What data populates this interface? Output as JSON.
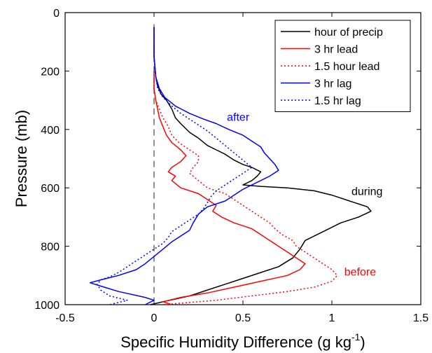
{
  "chart_data": {
    "type": "line",
    "xlabel": "Specific Humidity Difference (g kg",
    "xlabel_exponent": "-1",
    "xlabel_close": ")",
    "ylabel": "Pressure (mb)",
    "xlim": [
      -0.5,
      1.5
    ],
    "ylim": [
      1000,
      0
    ],
    "y_reversed": true,
    "xticks": [
      -0.5,
      0,
      0.5,
      1,
      1.5
    ],
    "xtick_labels": [
      "-0.5",
      "0",
      "0.5",
      "1",
      "1.5"
    ],
    "yticks": [
      0,
      200,
      400,
      600,
      800,
      1000
    ],
    "ytick_labels": [
      "0",
      "200",
      "400",
      "600",
      "800",
      "1000"
    ],
    "grid": false,
    "legend_position": "top-right",
    "reference_line": {
      "x": 0,
      "style": "dashed",
      "color": "#555555"
    },
    "series": [
      {
        "name": "hour of precip",
        "color": "#000000",
        "style": "solid",
        "points": [
          [
            0,
            50
          ],
          [
            0,
            150
          ],
          [
            0.01,
            220
          ],
          [
            0.02,
            250
          ],
          [
            0.04,
            280
          ],
          [
            0.07,
            300
          ],
          [
            0.1,
            330
          ],
          [
            0.12,
            360
          ],
          [
            0.15,
            380
          ],
          [
            0.2,
            410
          ],
          [
            0.25,
            430
          ],
          [
            0.3,
            455
          ],
          [
            0.35,
            470
          ],
          [
            0.4,
            485
          ],
          [
            0.45,
            505
          ],
          [
            0.5,
            520
          ],
          [
            0.55,
            530
          ],
          [
            0.6,
            545
          ],
          [
            0.58,
            560
          ],
          [
            0.55,
            575
          ],
          [
            0.5,
            590
          ],
          [
            0.6,
            595
          ],
          [
            0.75,
            600
          ],
          [
            0.9,
            610
          ],
          [
            1.0,
            625
          ],
          [
            1.1,
            645
          ],
          [
            1.2,
            665
          ],
          [
            1.22,
            680
          ],
          [
            1.15,
            700
          ],
          [
            1.05,
            720
          ],
          [
            0.95,
            750
          ],
          [
            0.85,
            780
          ],
          [
            0.82,
            810
          ],
          [
            0.78,
            840
          ],
          [
            0.7,
            870
          ],
          [
            0.6,
            890
          ],
          [
            0.5,
            910
          ],
          [
            0.4,
            930
          ],
          [
            0.3,
            950
          ],
          [
            0.2,
            970
          ],
          [
            0.05,
            990
          ],
          [
            -0.02,
            1000
          ]
        ]
      },
      {
        "name": "3 hr lead",
        "color": "#ff0000",
        "style": "solid",
        "points": [
          [
            0,
            200
          ],
          [
            0,
            230
          ],
          [
            0,
            260
          ],
          [
            0.01,
            300
          ],
          [
            0.02,
            330
          ],
          [
            0.03,
            360
          ],
          [
            0.05,
            390
          ],
          [
            0.07,
            420
          ],
          [
            0.1,
            445
          ],
          [
            0.15,
            470
          ],
          [
            0.18,
            490
          ],
          [
            0.15,
            510
          ],
          [
            0.1,
            530
          ],
          [
            0.08,
            545
          ],
          [
            0.12,
            560
          ],
          [
            0.1,
            575
          ],
          [
            0.15,
            600
          ],
          [
            0.25,
            620
          ],
          [
            0.3,
            640
          ],
          [
            0.35,
            660
          ],
          [
            0.33,
            680
          ],
          [
            0.38,
            700
          ],
          [
            0.45,
            720
          ],
          [
            0.55,
            740
          ],
          [
            0.6,
            760
          ],
          [
            0.65,
            780
          ],
          [
            0.7,
            800
          ],
          [
            0.75,
            820
          ],
          [
            0.8,
            840
          ],
          [
            0.85,
            860
          ],
          [
            0.82,
            880
          ],
          [
            0.75,
            900
          ],
          [
            0.6,
            920
          ],
          [
            0.45,
            940
          ],
          [
            0.3,
            960
          ],
          [
            0.15,
            975
          ],
          [
            0.05,
            990
          ],
          [
            0.1,
            1000
          ]
        ]
      },
      {
        "name": "1.5 hour lead",
        "color": "#ff0000",
        "style": "dotted",
        "points": [
          [
            0,
            200
          ],
          [
            0,
            230
          ],
          [
            0,
            260
          ],
          [
            0.01,
            300
          ],
          [
            0.03,
            330
          ],
          [
            0.05,
            360
          ],
          [
            0.08,
            390
          ],
          [
            0.1,
            420
          ],
          [
            0.14,
            445
          ],
          [
            0.2,
            470
          ],
          [
            0.25,
            490
          ],
          [
            0.25,
            510
          ],
          [
            0.22,
            530
          ],
          [
            0.2,
            550
          ],
          [
            0.25,
            575
          ],
          [
            0.3,
            600
          ],
          [
            0.4,
            620
          ],
          [
            0.45,
            640
          ],
          [
            0.5,
            660
          ],
          [
            0.55,
            680
          ],
          [
            0.6,
            700
          ],
          [
            0.65,
            720
          ],
          [
            0.68,
            740
          ],
          [
            0.72,
            760
          ],
          [
            0.78,
            780
          ],
          [
            0.8,
            800
          ],
          [
            0.85,
            820
          ],
          [
            0.9,
            840
          ],
          [
            0.95,
            860
          ],
          [
            1.0,
            880
          ],
          [
            1.03,
            900
          ],
          [
            1.0,
            920
          ],
          [
            0.9,
            940
          ],
          [
            0.75,
            955
          ],
          [
            0.55,
            970
          ],
          [
            0.35,
            985
          ],
          [
            0.15,
            995
          ],
          [
            0.05,
            1000
          ]
        ]
      },
      {
        "name": "3 hr lag",
        "color": "#0000ff",
        "style": "solid",
        "points": [
          [
            0,
            50
          ],
          [
            0,
            150
          ],
          [
            0.01,
            220
          ],
          [
            0.03,
            260
          ],
          [
            0.06,
            290
          ],
          [
            0.12,
            320
          ],
          [
            0.2,
            345
          ],
          [
            0.28,
            365
          ],
          [
            0.35,
            380
          ],
          [
            0.42,
            400
          ],
          [
            0.5,
            420
          ],
          [
            0.55,
            440
          ],
          [
            0.6,
            460
          ],
          [
            0.62,
            480
          ],
          [
            0.65,
            500
          ],
          [
            0.68,
            520
          ],
          [
            0.7,
            540
          ],
          [
            0.65,
            560
          ],
          [
            0.6,
            575
          ],
          [
            0.55,
            590
          ],
          [
            0.5,
            605
          ],
          [
            0.45,
            625
          ],
          [
            0.4,
            645
          ],
          [
            0.3,
            665
          ],
          [
            0.25,
            690
          ],
          [
            0.22,
            720
          ],
          [
            0.2,
            745
          ],
          [
            0.15,
            765
          ],
          [
            0.1,
            785
          ],
          [
            0.05,
            810
          ],
          [
            0,
            835
          ],
          [
            -0.05,
            860
          ],
          [
            -0.1,
            880
          ],
          [
            -0.2,
            900
          ],
          [
            -0.3,
            915
          ],
          [
            -0.36,
            925
          ],
          [
            -0.28,
            940
          ],
          [
            -0.2,
            955
          ],
          [
            -0.05,
            975
          ],
          [
            0,
            985
          ],
          [
            -0.05,
            1000
          ]
        ]
      },
      {
        "name": "1.5 hr lag",
        "color": "#0000ff",
        "style": "dotted",
        "points": [
          [
            0,
            50
          ],
          [
            0,
            150
          ],
          [
            0.01,
            220
          ],
          [
            0.02,
            260
          ],
          [
            0.05,
            290
          ],
          [
            0.1,
            320
          ],
          [
            0.15,
            345
          ],
          [
            0.2,
            365
          ],
          [
            0.25,
            385
          ],
          [
            0.3,
            405
          ],
          [
            0.35,
            430
          ],
          [
            0.4,
            455
          ],
          [
            0.45,
            480
          ],
          [
            0.5,
            505
          ],
          [
            0.55,
            530
          ],
          [
            0.5,
            550
          ],
          [
            0.45,
            570
          ],
          [
            0.4,
            590
          ],
          [
            0.35,
            610
          ],
          [
            0.32,
            630
          ],
          [
            0.3,
            650
          ],
          [
            0.28,
            670
          ],
          [
            0.25,
            690
          ],
          [
            0.2,
            710
          ],
          [
            0.15,
            730
          ],
          [
            0.1,
            750
          ],
          [
            0.08,
            770
          ],
          [
            0.05,
            790
          ],
          [
            0,
            810
          ],
          [
            -0.05,
            830
          ],
          [
            -0.1,
            850
          ],
          [
            -0.15,
            870
          ],
          [
            -0.2,
            890
          ],
          [
            -0.25,
            905
          ],
          [
            -0.3,
            915
          ],
          [
            -0.32,
            930
          ],
          [
            -0.3,
            950
          ],
          [
            -0.25,
            970
          ],
          [
            -0.15,
            985
          ],
          [
            -0.25,
            1000
          ]
        ]
      }
    ],
    "annotations": [
      {
        "text": "after",
        "x": 0.41,
        "y": 370,
        "color": "#0000ff"
      },
      {
        "text": "during",
        "x": 1.11,
        "y": 625,
        "color": "#000000"
      },
      {
        "text": "before",
        "x": 1.07,
        "y": 900,
        "color": "#ff0000"
      }
    ]
  }
}
